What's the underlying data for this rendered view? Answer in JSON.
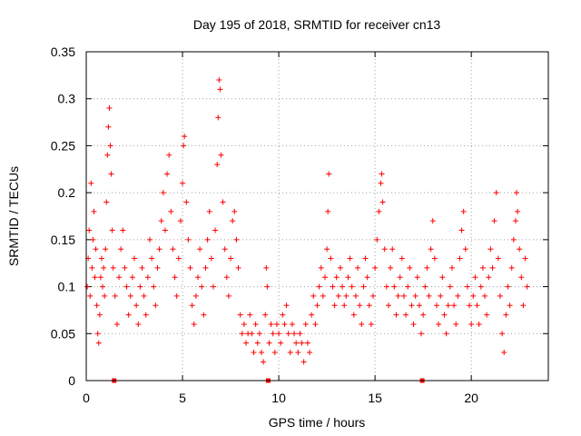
{
  "chart_data": {
    "type": "scatter",
    "title": "Day 195 of 2018, SRMTID for receiver cn13",
    "xlabel": "GPS time / hours",
    "ylabel": "SRMTID / TECUs",
    "xlim": [
      0,
      24
    ],
    "ylim": [
      0,
      0.35
    ],
    "x_ticks": [
      0,
      5,
      10,
      15,
      20
    ],
    "y_ticks": [
      0,
      0.05,
      0.1,
      0.15,
      0.2,
      0.25,
      0.3,
      0.35
    ],
    "x_tick_labels": [
      "0",
      "5",
      "10",
      "15",
      "20"
    ],
    "y_tick_labels": [
      "0",
      "0.05",
      "0.1",
      "0.15",
      "0.2",
      "0.25",
      "0.3",
      "0.35"
    ],
    "grid": true,
    "marker": "+",
    "color": "#ff0000",
    "zero_markers_x": [
      1.45,
      9.45,
      17.45
    ],
    "series": [
      {
        "name": "SRMTID",
        "points": [
          [
            0.05,
            0.1
          ],
          [
            0.1,
            0.13
          ],
          [
            0.15,
            0.16
          ],
          [
            0.2,
            0.09
          ],
          [
            0.25,
            0.21
          ],
          [
            0.3,
            0.12
          ],
          [
            0.35,
            0.15
          ],
          [
            0.4,
            0.18
          ],
          [
            0.45,
            0.11
          ],
          [
            0.5,
            0.14
          ],
          [
            0.55,
            0.08
          ],
          [
            0.6,
            0.05
          ],
          [
            0.65,
            0.04
          ],
          [
            0.7,
            0.07
          ],
          [
            0.75,
            0.11
          ],
          [
            0.8,
            0.13
          ],
          [
            0.85,
            0.1
          ],
          [
            0.9,
            0.12
          ],
          [
            0.95,
            0.09
          ],
          [
            1.0,
            0.14
          ],
          [
            1.05,
            0.19
          ],
          [
            1.1,
            0.24
          ],
          [
            1.15,
            0.27
          ],
          [
            1.2,
            0.29
          ],
          [
            1.25,
            0.25
          ],
          [
            1.3,
            0.22
          ],
          [
            1.35,
            0.16
          ],
          [
            1.4,
            0.12
          ],
          [
            1.5,
            0.09
          ],
          [
            1.6,
            0.06
          ],
          [
            1.7,
            0.11
          ],
          [
            1.8,
            0.14
          ],
          [
            1.9,
            0.16
          ],
          [
            2.0,
            0.12
          ],
          [
            2.1,
            0.1
          ],
          [
            2.2,
            0.07
          ],
          [
            2.3,
            0.09
          ],
          [
            2.4,
            0.11
          ],
          [
            2.5,
            0.13
          ],
          [
            2.6,
            0.08
          ],
          [
            2.7,
            0.06
          ],
          [
            2.8,
            0.1
          ],
          [
            2.9,
            0.12
          ],
          [
            3.0,
            0.09
          ],
          [
            3.1,
            0.07
          ],
          [
            3.2,
            0.11
          ],
          [
            3.3,
            0.15
          ],
          [
            3.4,
            0.13
          ],
          [
            3.5,
            0.1
          ],
          [
            3.6,
            0.08
          ],
          [
            3.7,
            0.12
          ],
          [
            3.8,
            0.14
          ],
          [
            3.9,
            0.17
          ],
          [
            4.0,
            0.2
          ],
          [
            4.1,
            0.16
          ],
          [
            4.2,
            0.22
          ],
          [
            4.3,
            0.24
          ],
          [
            4.4,
            0.18
          ],
          [
            4.5,
            0.14
          ],
          [
            4.6,
            0.11
          ],
          [
            4.7,
            0.09
          ],
          [
            4.8,
            0.13
          ],
          [
            4.9,
            0.17
          ],
          [
            5.0,
            0.21
          ],
          [
            5.05,
            0.25
          ],
          [
            5.1,
            0.26
          ],
          [
            5.2,
            0.19
          ],
          [
            5.3,
            0.15
          ],
          [
            5.4,
            0.12
          ],
          [
            5.5,
            0.08
          ],
          [
            5.6,
            0.06
          ],
          [
            5.7,
            0.09
          ],
          [
            5.8,
            0.11
          ],
          [
            5.9,
            0.14
          ],
          [
            6.0,
            0.1
          ],
          [
            6.1,
            0.07
          ],
          [
            6.2,
            0.12
          ],
          [
            6.3,
            0.15
          ],
          [
            6.4,
            0.18
          ],
          [
            6.5,
            0.13
          ],
          [
            6.6,
            0.1
          ],
          [
            6.7,
            0.16
          ],
          [
            6.8,
            0.23
          ],
          [
            6.85,
            0.28
          ],
          [
            6.9,
            0.32
          ],
          [
            6.95,
            0.31
          ],
          [
            7.0,
            0.24
          ],
          [
            7.1,
            0.19
          ],
          [
            7.2,
            0.14
          ],
          [
            7.3,
            0.11
          ],
          [
            7.4,
            0.09
          ],
          [
            7.5,
            0.13
          ],
          [
            7.6,
            0.17
          ],
          [
            7.7,
            0.18
          ],
          [
            7.8,
            0.15
          ],
          [
            7.9,
            0.12
          ],
          [
            8.0,
            0.07
          ],
          [
            8.1,
            0.05
          ],
          [
            8.2,
            0.06
          ],
          [
            8.3,
            0.04
          ],
          [
            8.4,
            0.05
          ],
          [
            8.5,
            0.07
          ],
          [
            8.6,
            0.05
          ],
          [
            8.7,
            0.03
          ],
          [
            8.8,
            0.06
          ],
          [
            8.9,
            0.04
          ],
          [
            9.0,
            0.05
          ],
          [
            9.1,
            0.03
          ],
          [
            9.2,
            0.02
          ],
          [
            9.3,
            0.07
          ],
          [
            9.35,
            0.12
          ],
          [
            9.4,
            0.1
          ],
          [
            9.5,
            0.04
          ],
          [
            9.6,
            0.06
          ],
          [
            9.7,
            0.05
          ],
          [
            9.8,
            0.03
          ],
          [
            9.9,
            0.06
          ],
          [
            10.0,
            0.05
          ],
          [
            10.1,
            0.04
          ],
          [
            10.2,
            0.07
          ],
          [
            10.3,
            0.06
          ],
          [
            10.4,
            0.08
          ],
          [
            10.5,
            0.05
          ],
          [
            10.6,
            0.03
          ],
          [
            10.7,
            0.06
          ],
          [
            10.8,
            0.05
          ],
          [
            10.9,
            0.04
          ],
          [
            11.0,
            0.03
          ],
          [
            11.1,
            0.05
          ],
          [
            11.2,
            0.04
          ],
          [
            11.3,
            0.02
          ],
          [
            11.4,
            0.06
          ],
          [
            11.5,
            0.04
          ],
          [
            11.6,
            0.03
          ],
          [
            11.7,
            0.07
          ],
          [
            11.8,
            0.09
          ],
          [
            11.9,
            0.06
          ],
          [
            12.0,
            0.08
          ],
          [
            12.1,
            0.1
          ],
          [
            12.2,
            0.12
          ],
          [
            12.3,
            0.09
          ],
          [
            12.4,
            0.11
          ],
          [
            12.5,
            0.14
          ],
          [
            12.55,
            0.18
          ],
          [
            12.6,
            0.22
          ],
          [
            12.7,
            0.13
          ],
          [
            12.8,
            0.1
          ],
          [
            12.9,
            0.08
          ],
          [
            13.0,
            0.11
          ],
          [
            13.1,
            0.09
          ],
          [
            13.2,
            0.12
          ],
          [
            13.3,
            0.1
          ],
          [
            13.4,
            0.08
          ],
          [
            13.5,
            0.09
          ],
          [
            13.6,
            0.11
          ],
          [
            13.7,
            0.13
          ],
          [
            13.8,
            0.1
          ],
          [
            13.9,
            0.07
          ],
          [
            14.0,
            0.09
          ],
          [
            14.1,
            0.12
          ],
          [
            14.2,
            0.08
          ],
          [
            14.3,
            0.06
          ],
          [
            14.4,
            0.1
          ],
          [
            14.5,
            0.13
          ],
          [
            14.6,
            0.11
          ],
          [
            14.7,
            0.08
          ],
          [
            14.8,
            0.06
          ],
          [
            14.9,
            0.09
          ],
          [
            15.0,
            0.12
          ],
          [
            15.1,
            0.15
          ],
          [
            15.2,
            0.18
          ],
          [
            15.3,
            0.21
          ],
          [
            15.35,
            0.22
          ],
          [
            15.4,
            0.19
          ],
          [
            15.5,
            0.14
          ],
          [
            15.6,
            0.1
          ],
          [
            15.7,
            0.08
          ],
          [
            15.8,
            0.12
          ],
          [
            15.9,
            0.14
          ],
          [
            16.0,
            0.1
          ],
          [
            16.1,
            0.07
          ],
          [
            16.2,
            0.09
          ],
          [
            16.3,
            0.11
          ],
          [
            16.4,
            0.13
          ],
          [
            16.5,
            0.09
          ],
          [
            16.6,
            0.07
          ],
          [
            16.7,
            0.1
          ],
          [
            16.8,
            0.12
          ],
          [
            16.9,
            0.08
          ],
          [
            17.0,
            0.06
          ],
          [
            17.1,
            0.09
          ],
          [
            17.2,
            0.11
          ],
          [
            17.3,
            0.08
          ],
          [
            17.4,
            0.05
          ],
          [
            17.5,
            0.07
          ],
          [
            17.6,
            0.1
          ],
          [
            17.7,
            0.12
          ],
          [
            17.8,
            0.09
          ],
          [
            17.9,
            0.14
          ],
          [
            18.0,
            0.17
          ],
          [
            18.1,
            0.13
          ],
          [
            18.2,
            0.08
          ],
          [
            18.3,
            0.06
          ],
          [
            18.4,
            0.09
          ],
          [
            18.5,
            0.11
          ],
          [
            18.6,
            0.07
          ],
          [
            18.7,
            0.05
          ],
          [
            18.8,
            0.08
          ],
          [
            18.9,
            0.1
          ],
          [
            19.0,
            0.12
          ],
          [
            19.1,
            0.08
          ],
          [
            19.2,
            0.06
          ],
          [
            19.3,
            0.09
          ],
          [
            19.4,
            0.13
          ],
          [
            19.5,
            0.16
          ],
          [
            19.6,
            0.18
          ],
          [
            19.7,
            0.14
          ],
          [
            19.8,
            0.1
          ],
          [
            19.9,
            0.08
          ],
          [
            20.0,
            0.06
          ],
          [
            20.1,
            0.09
          ],
          [
            20.2,
            0.11
          ],
          [
            20.3,
            0.08
          ],
          [
            20.4,
            0.06
          ],
          [
            20.5,
            0.1
          ],
          [
            20.6,
            0.12
          ],
          [
            20.7,
            0.09
          ],
          [
            20.8,
            0.07
          ],
          [
            20.9,
            0.11
          ],
          [
            21.0,
            0.14
          ],
          [
            21.1,
            0.12
          ],
          [
            21.2,
            0.17
          ],
          [
            21.3,
            0.2
          ],
          [
            21.4,
            0.13
          ],
          [
            21.5,
            0.09
          ],
          [
            21.6,
            0.05
          ],
          [
            21.7,
            0.03
          ],
          [
            21.8,
            0.07
          ],
          [
            21.9,
            0.1
          ],
          [
            22.0,
            0.08
          ],
          [
            22.1,
            0.12
          ],
          [
            22.2,
            0.15
          ],
          [
            22.3,
            0.17
          ],
          [
            22.35,
            0.2
          ],
          [
            22.4,
            0.18
          ],
          [
            22.5,
            0.14
          ],
          [
            22.6,
            0.11
          ],
          [
            22.7,
            0.08
          ],
          [
            22.8,
            0.13
          ],
          [
            22.9,
            0.1
          ]
        ]
      }
    ]
  }
}
